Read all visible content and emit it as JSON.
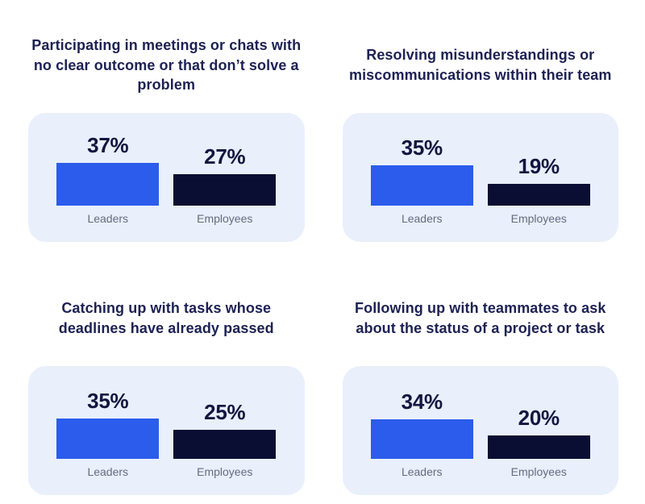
{
  "colors": {
    "leaders_bar": "#2b5ceb",
    "employees_bar": "#0a0e33",
    "card_bg": "#e9effb",
    "title_text": "#1d2153",
    "value_text": "#12163f",
    "label_text": "#656b7d",
    "page_bg": "#ffffff"
  },
  "chart_data": [
    {
      "type": "bar",
      "title": "Participating in meetings or chats with no clear outcome or that don’t solve a problem",
      "categories": [
        "Leaders",
        "Employees"
      ],
      "values": [
        37,
        27
      ],
      "value_labels": [
        "37%",
        "27%"
      ],
      "unit": "%",
      "ylim": [
        0,
        40
      ],
      "grid": false,
      "legend": "none"
    },
    {
      "type": "bar",
      "title": "Resolving misunderstandings or miscommunications within their team",
      "categories": [
        "Leaders",
        "Employees"
      ],
      "values": [
        35,
        19
      ],
      "value_labels": [
        "35%",
        "19%"
      ],
      "unit": "%",
      "ylim": [
        0,
        40
      ],
      "grid": false,
      "legend": "none"
    },
    {
      "type": "bar",
      "title": "Catching up with tasks whose deadlines have already passed",
      "categories": [
        "Leaders",
        "Employees"
      ],
      "values": [
        35,
        25
      ],
      "value_labels": [
        "35%",
        "25%"
      ],
      "unit": "%",
      "ylim": [
        0,
        40
      ],
      "grid": false,
      "legend": "none"
    },
    {
      "type": "bar",
      "title": "Following up with teammates to ask about the status of a project or task",
      "categories": [
        "Leaders",
        "Employees"
      ],
      "values": [
        34,
        20
      ],
      "value_labels": [
        "34%",
        "20%"
      ],
      "unit": "%",
      "ylim": [
        0,
        40
      ],
      "grid": false,
      "legend": "none"
    }
  ]
}
